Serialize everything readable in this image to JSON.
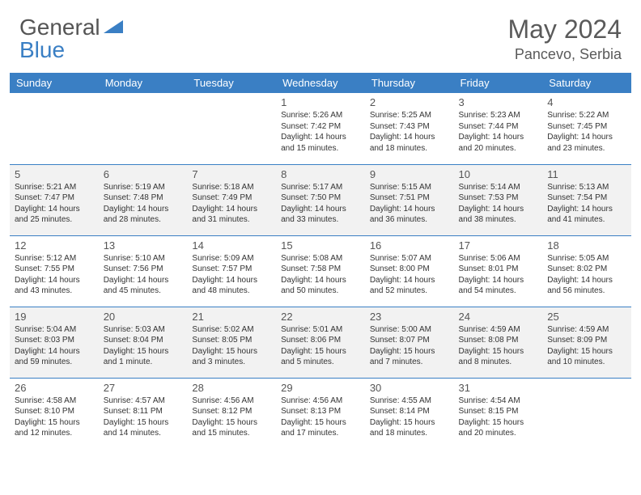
{
  "logo": {
    "general": "General",
    "blue": "Blue"
  },
  "title": "May 2024",
  "location": "Pancevo, Serbia",
  "colors": {
    "header_bg": "#3a7fc4",
    "header_text": "#ffffff",
    "shade_bg": "#f2f2f2",
    "text": "#333333",
    "border": "#3a7fc4"
  },
  "weekdays": [
    "Sunday",
    "Monday",
    "Tuesday",
    "Wednesday",
    "Thursday",
    "Friday",
    "Saturday"
  ],
  "weeks": [
    {
      "shaded": false,
      "days": [
        null,
        null,
        null,
        {
          "n": "1",
          "sr": "Sunrise: 5:26 AM",
          "ss": "Sunset: 7:42 PM",
          "dl1": "Daylight: 14 hours",
          "dl2": "and 15 minutes."
        },
        {
          "n": "2",
          "sr": "Sunrise: 5:25 AM",
          "ss": "Sunset: 7:43 PM",
          "dl1": "Daylight: 14 hours",
          "dl2": "and 18 minutes."
        },
        {
          "n": "3",
          "sr": "Sunrise: 5:23 AM",
          "ss": "Sunset: 7:44 PM",
          "dl1": "Daylight: 14 hours",
          "dl2": "and 20 minutes."
        },
        {
          "n": "4",
          "sr": "Sunrise: 5:22 AM",
          "ss": "Sunset: 7:45 PM",
          "dl1": "Daylight: 14 hours",
          "dl2": "and 23 minutes."
        }
      ]
    },
    {
      "shaded": true,
      "days": [
        {
          "n": "5",
          "sr": "Sunrise: 5:21 AM",
          "ss": "Sunset: 7:47 PM",
          "dl1": "Daylight: 14 hours",
          "dl2": "and 25 minutes."
        },
        {
          "n": "6",
          "sr": "Sunrise: 5:19 AM",
          "ss": "Sunset: 7:48 PM",
          "dl1": "Daylight: 14 hours",
          "dl2": "and 28 minutes."
        },
        {
          "n": "7",
          "sr": "Sunrise: 5:18 AM",
          "ss": "Sunset: 7:49 PM",
          "dl1": "Daylight: 14 hours",
          "dl2": "and 31 minutes."
        },
        {
          "n": "8",
          "sr": "Sunrise: 5:17 AM",
          "ss": "Sunset: 7:50 PM",
          "dl1": "Daylight: 14 hours",
          "dl2": "and 33 minutes."
        },
        {
          "n": "9",
          "sr": "Sunrise: 5:15 AM",
          "ss": "Sunset: 7:51 PM",
          "dl1": "Daylight: 14 hours",
          "dl2": "and 36 minutes."
        },
        {
          "n": "10",
          "sr": "Sunrise: 5:14 AM",
          "ss": "Sunset: 7:53 PM",
          "dl1": "Daylight: 14 hours",
          "dl2": "and 38 minutes."
        },
        {
          "n": "11",
          "sr": "Sunrise: 5:13 AM",
          "ss": "Sunset: 7:54 PM",
          "dl1": "Daylight: 14 hours",
          "dl2": "and 41 minutes."
        }
      ]
    },
    {
      "shaded": false,
      "days": [
        {
          "n": "12",
          "sr": "Sunrise: 5:12 AM",
          "ss": "Sunset: 7:55 PM",
          "dl1": "Daylight: 14 hours",
          "dl2": "and 43 minutes."
        },
        {
          "n": "13",
          "sr": "Sunrise: 5:10 AM",
          "ss": "Sunset: 7:56 PM",
          "dl1": "Daylight: 14 hours",
          "dl2": "and 45 minutes."
        },
        {
          "n": "14",
          "sr": "Sunrise: 5:09 AM",
          "ss": "Sunset: 7:57 PM",
          "dl1": "Daylight: 14 hours",
          "dl2": "and 48 minutes."
        },
        {
          "n": "15",
          "sr": "Sunrise: 5:08 AM",
          "ss": "Sunset: 7:58 PM",
          "dl1": "Daylight: 14 hours",
          "dl2": "and 50 minutes."
        },
        {
          "n": "16",
          "sr": "Sunrise: 5:07 AM",
          "ss": "Sunset: 8:00 PM",
          "dl1": "Daylight: 14 hours",
          "dl2": "and 52 minutes."
        },
        {
          "n": "17",
          "sr": "Sunrise: 5:06 AM",
          "ss": "Sunset: 8:01 PM",
          "dl1": "Daylight: 14 hours",
          "dl2": "and 54 minutes."
        },
        {
          "n": "18",
          "sr": "Sunrise: 5:05 AM",
          "ss": "Sunset: 8:02 PM",
          "dl1": "Daylight: 14 hours",
          "dl2": "and 56 minutes."
        }
      ]
    },
    {
      "shaded": true,
      "days": [
        {
          "n": "19",
          "sr": "Sunrise: 5:04 AM",
          "ss": "Sunset: 8:03 PM",
          "dl1": "Daylight: 14 hours",
          "dl2": "and 59 minutes."
        },
        {
          "n": "20",
          "sr": "Sunrise: 5:03 AM",
          "ss": "Sunset: 8:04 PM",
          "dl1": "Daylight: 15 hours",
          "dl2": "and 1 minute."
        },
        {
          "n": "21",
          "sr": "Sunrise: 5:02 AM",
          "ss": "Sunset: 8:05 PM",
          "dl1": "Daylight: 15 hours",
          "dl2": "and 3 minutes."
        },
        {
          "n": "22",
          "sr": "Sunrise: 5:01 AM",
          "ss": "Sunset: 8:06 PM",
          "dl1": "Daylight: 15 hours",
          "dl2": "and 5 minutes."
        },
        {
          "n": "23",
          "sr": "Sunrise: 5:00 AM",
          "ss": "Sunset: 8:07 PM",
          "dl1": "Daylight: 15 hours",
          "dl2": "and 7 minutes."
        },
        {
          "n": "24",
          "sr": "Sunrise: 4:59 AM",
          "ss": "Sunset: 8:08 PM",
          "dl1": "Daylight: 15 hours",
          "dl2": "and 8 minutes."
        },
        {
          "n": "25",
          "sr": "Sunrise: 4:59 AM",
          "ss": "Sunset: 8:09 PM",
          "dl1": "Daylight: 15 hours",
          "dl2": "and 10 minutes."
        }
      ]
    },
    {
      "shaded": false,
      "days": [
        {
          "n": "26",
          "sr": "Sunrise: 4:58 AM",
          "ss": "Sunset: 8:10 PM",
          "dl1": "Daylight: 15 hours",
          "dl2": "and 12 minutes."
        },
        {
          "n": "27",
          "sr": "Sunrise: 4:57 AM",
          "ss": "Sunset: 8:11 PM",
          "dl1": "Daylight: 15 hours",
          "dl2": "and 14 minutes."
        },
        {
          "n": "28",
          "sr": "Sunrise: 4:56 AM",
          "ss": "Sunset: 8:12 PM",
          "dl1": "Daylight: 15 hours",
          "dl2": "and 15 minutes."
        },
        {
          "n": "29",
          "sr": "Sunrise: 4:56 AM",
          "ss": "Sunset: 8:13 PM",
          "dl1": "Daylight: 15 hours",
          "dl2": "and 17 minutes."
        },
        {
          "n": "30",
          "sr": "Sunrise: 4:55 AM",
          "ss": "Sunset: 8:14 PM",
          "dl1": "Daylight: 15 hours",
          "dl2": "and 18 minutes."
        },
        {
          "n": "31",
          "sr": "Sunrise: 4:54 AM",
          "ss": "Sunset: 8:15 PM",
          "dl1": "Daylight: 15 hours",
          "dl2": "and 20 minutes."
        },
        null
      ]
    }
  ]
}
